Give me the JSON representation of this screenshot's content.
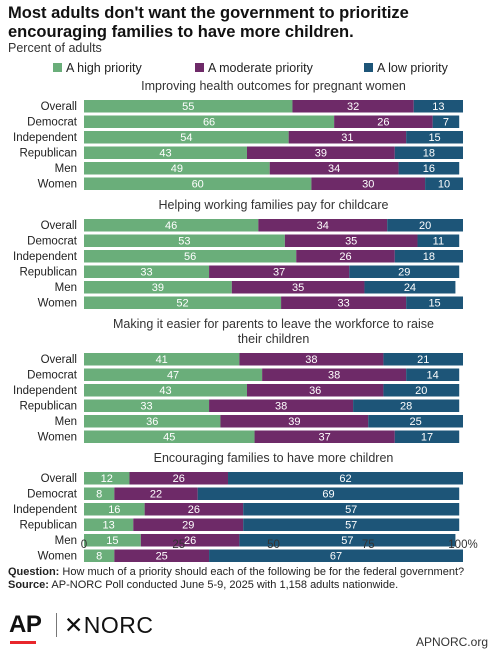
{
  "header": {
    "title": "Most adults don't want the government to prioritize encouraging families to have more children.",
    "subtitle": "Percent of adults"
  },
  "legend": [
    {
      "label": "A high priority",
      "color": "#6aae7a"
    },
    {
      "label": "A moderate priority",
      "color": "#6e2a68"
    },
    {
      "label": "A low priority",
      "color": "#1d5578"
    }
  ],
  "footer": {
    "question_label": "Question:",
    "question_text": "How much of a priority should each of the following be for the federal government?",
    "source_label": "Source:",
    "source_text": "AP-NORC Poll conducted June 5-9, 2025 with 1,158 adults nationwide."
  },
  "logos": {
    "ap": "AP",
    "norc": "NORC",
    "site": "APNORC.org"
  },
  "chart_data": {
    "type": "bar",
    "orientation": "horizontal-stacked",
    "x_ticks": [
      "0",
      "25",
      "50",
      "75",
      "100%"
    ],
    "xlim": [
      0,
      100
    ],
    "series_names": [
      "A high priority",
      "A moderate priority",
      "A low priority"
    ],
    "colors": [
      "#6aae7a",
      "#6e2a68",
      "#1d5578"
    ],
    "groups": [
      {
        "title": "Improving health outcomes for pregnant women",
        "rows": [
          {
            "label": "Overall",
            "values": [
              55,
              32,
              13
            ]
          },
          {
            "label": "Democrat",
            "values": [
              66,
              26,
              7
            ]
          },
          {
            "label": "Independent",
            "values": [
              54,
              31,
              15
            ]
          },
          {
            "label": "Republican",
            "values": [
              43,
              39,
              18
            ]
          },
          {
            "label": "Men",
            "values": [
              49,
              34,
              16
            ]
          },
          {
            "label": "Women",
            "values": [
              60,
              30,
              10
            ]
          }
        ]
      },
      {
        "title": "Helping working families pay for childcare",
        "rows": [
          {
            "label": "Overall",
            "values": [
              46,
              34,
              20
            ]
          },
          {
            "label": "Democrat",
            "values": [
              53,
              35,
              11
            ]
          },
          {
            "label": "Independent",
            "values": [
              56,
              26,
              18
            ]
          },
          {
            "label": "Republican",
            "values": [
              33,
              37,
              29
            ]
          },
          {
            "label": "Men",
            "values": [
              39,
              35,
              24
            ]
          },
          {
            "label": "Women",
            "values": [
              52,
              33,
              15
            ]
          }
        ]
      },
      {
        "title": "Making it easier for parents to leave the workforce to raise their children",
        "title_lines": [
          "Making it easier for parents to leave the workforce to raise",
          "their children"
        ],
        "rows": [
          {
            "label": "Overall",
            "values": [
              41,
              38,
              21
            ]
          },
          {
            "label": "Democrat",
            "values": [
              47,
              38,
              14
            ]
          },
          {
            "label": "Independent",
            "values": [
              43,
              36,
              20
            ]
          },
          {
            "label": "Republican",
            "values": [
              33,
              38,
              28
            ]
          },
          {
            "label": "Men",
            "values": [
              36,
              39,
              25
            ]
          },
          {
            "label": "Women",
            "values": [
              45,
              37,
              17
            ]
          }
        ]
      },
      {
        "title": "Encouraging families to have more children",
        "rows": [
          {
            "label": "Overall",
            "values": [
              12,
              26,
              62
            ]
          },
          {
            "label": "Democrat",
            "values": [
              8,
              22,
              69
            ]
          },
          {
            "label": "Independent",
            "values": [
              16,
              26,
              57
            ]
          },
          {
            "label": "Republican",
            "values": [
              13,
              29,
              57
            ]
          },
          {
            "label": "Men",
            "values": [
              15,
              26,
              57
            ]
          },
          {
            "label": "Women",
            "values": [
              8,
              25,
              67
            ]
          }
        ]
      }
    ]
  }
}
